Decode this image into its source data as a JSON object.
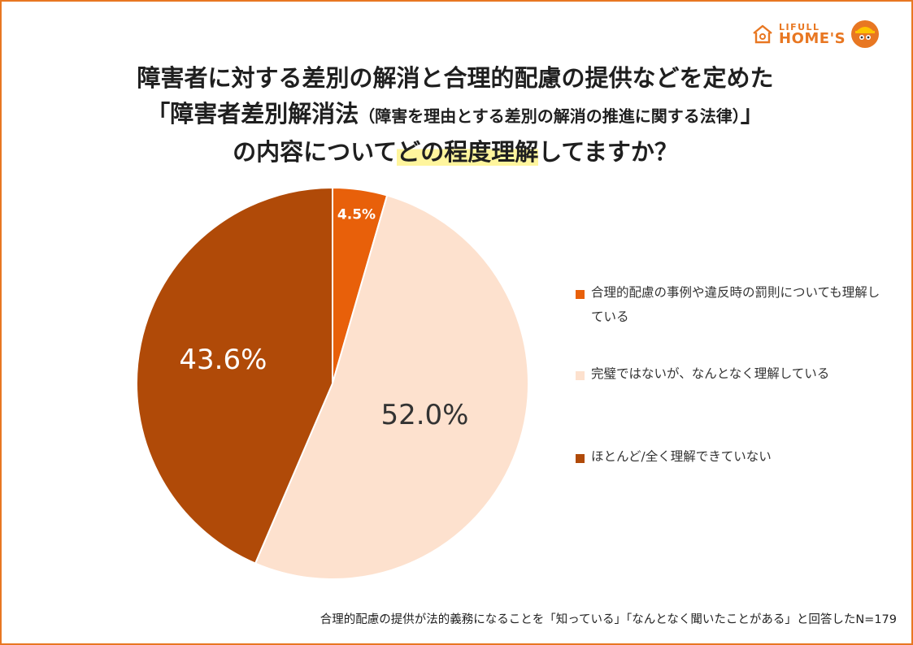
{
  "logo": {
    "small": "LIFULL",
    "big": "HOME'S"
  },
  "title": {
    "line1": "障害者に対する差別の解消と合理的配慮の提供などを定めた",
    "line2_main": "「障害者差別解消法",
    "line2_sub": "（障害を理由とする差別の解消の推進に関する法律）",
    "line2_end": "」",
    "line3_pre": "の内容について",
    "line3_highlight": "どの程度理解",
    "line3_post": "してますか？"
  },
  "chart_data": {
    "type": "pie",
    "start_angle_deg": 0,
    "direction": "clockwise",
    "slices": [
      {
        "label": "合理的配慮の事例や違反時の罰則についても理解している",
        "value": 4.5,
        "display": "4.5%",
        "color": "#e8600a",
        "label_color": "#ffffff"
      },
      {
        "label": "完璧ではないが、なんとなく理解している",
        "value": 52.0,
        "display": "52.0%",
        "color": "#fde1ce",
        "label_color": "#333333"
      },
      {
        "label": "ほとんど/全く理解できていない",
        "value": 43.6,
        "display": "43.6%",
        "color": "#b04a08",
        "label_color": "#ffffff"
      }
    ],
    "legend_position": "right"
  },
  "legend": {
    "item0": "合理的配慮の事例や違反時の罰則についても理解している",
    "item1": "完璧ではないが、なんとなく理解している",
    "item2": "ほとんど/全く理解できていない"
  },
  "footnote": "合理的配慮の提供が法的義務になることを「知っている」「なんとなく聞いたことがある」と回答したN=179"
}
